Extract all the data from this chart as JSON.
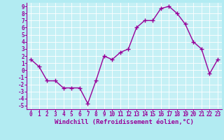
{
  "x": [
    0,
    1,
    2,
    3,
    4,
    5,
    6,
    7,
    8,
    9,
    10,
    11,
    12,
    13,
    14,
    15,
    16,
    17,
    18,
    19,
    20,
    21,
    22,
    23
  ],
  "y": [
    1.5,
    0.5,
    -1.5,
    -1.5,
    -2.5,
    -2.5,
    -2.5,
    -4.7,
    -1.5,
    2.0,
    1.5,
    2.5,
    3.0,
    6.0,
    7.0,
    7.0,
    8.7,
    9.0,
    8.0,
    6.5,
    4.0,
    3.0,
    -0.5,
    1.5
  ],
  "line_color": "#990099",
  "marker": "+",
  "markersize": 4,
  "linewidth": 1.0,
  "bg_color": "#b2ebf2",
  "plot_bg_color": "#c5f0f5",
  "grid_color": "#ffffff",
  "xlabel": "Windchill (Refroidissement éolien,°C)",
  "xlim": [
    -0.5,
    23.5
  ],
  "ylim": [
    -5.5,
    9.5
  ],
  "yticks": [
    -5,
    -4,
    -3,
    -2,
    -1,
    0,
    1,
    2,
    3,
    4,
    5,
    6,
    7,
    8,
    9
  ],
  "xticks": [
    0,
    1,
    2,
    3,
    4,
    5,
    6,
    7,
    8,
    9,
    10,
    11,
    12,
    13,
    14,
    15,
    16,
    17,
    18,
    19,
    20,
    21,
    22,
    23
  ],
  "tick_color": "#990099",
  "label_color": "#990099",
  "xlabel_fontsize": 6.5,
  "tick_fontsize": 5.5,
  "spine_color": "#990099",
  "bottom_bar_color": "#990099"
}
